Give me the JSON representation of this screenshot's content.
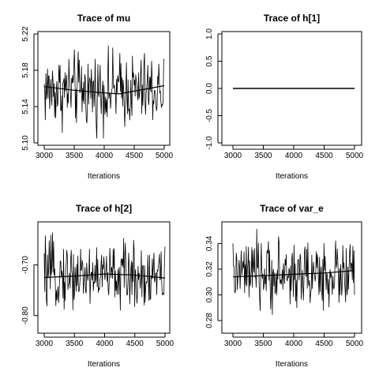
{
  "chart_data": [
    {
      "type": "line",
      "title": "Trace of mu",
      "xlabel": "Iterations",
      "ylabel": "",
      "xlim": [
        3000,
        5000
      ],
      "ylim": [
        5.1,
        5.22
      ],
      "x_ticks": [
        "3000",
        "3500",
        "4000",
        "4500",
        "5000"
      ],
      "y_ticks": [
        "5.10",
        "5.14",
        "5.18",
        "5.22"
      ],
      "series": [
        {
          "role": "trace",
          "x_range": [
            3000,
            5000
          ],
          "approx_mean": 5.158,
          "approx_min": 5.105,
          "approx_max": 5.225
        },
        {
          "role": "smooth",
          "x": [
            3000,
            3500,
            4000,
            4250,
            4500,
            5000
          ],
          "y": [
            5.162,
            5.158,
            5.155,
            5.154,
            5.157,
            5.163
          ]
        }
      ]
    },
    {
      "type": "line",
      "title": "Trace of h[1]",
      "xlabel": "Iterations",
      "ylabel": "",
      "xlim": [
        3000,
        5000
      ],
      "ylim": [
        -1.0,
        1.0
      ],
      "x_ticks": [
        "3000",
        "3500",
        "4000",
        "4500",
        "5000"
      ],
      "y_ticks": [
        "-1.0",
        "-0.5",
        "0.0",
        "0.5",
        "1.0"
      ],
      "series": [
        {
          "role": "trace",
          "x": [
            3000,
            5000
          ],
          "y": [
            0.0,
            0.0
          ]
        }
      ]
    },
    {
      "type": "line",
      "title": "Trace of h[2]",
      "xlabel": "Iterations",
      "ylabel": "",
      "xlim": [
        3000,
        5000
      ],
      "ylim": [
        -0.83,
        -0.62
      ],
      "x_ticks": [
        "3000",
        "3500",
        "4000",
        "4500",
        "5000"
      ],
      "y_ticks": [
        "-0.80",
        "-0.70"
      ],
      "series": [
        {
          "role": "trace",
          "x_range": [
            3000,
            5000
          ],
          "approx_mean": -0.72,
          "approx_min": -0.82,
          "approx_max": -0.63
        },
        {
          "role": "smooth",
          "x": [
            3000,
            3500,
            4000,
            4500,
            5000
          ],
          "y": [
            -0.725,
            -0.722,
            -0.718,
            -0.72,
            -0.726
          ]
        }
      ]
    },
    {
      "type": "line",
      "title": "Trace of var_e",
      "xlabel": "Iterations",
      "ylabel": "",
      "xlim": [
        3000,
        5000
      ],
      "ylim": [
        0.272,
        0.355
      ],
      "x_ticks": [
        "3000",
        "3500",
        "4000",
        "4500",
        "5000"
      ],
      "y_ticks": [
        "0.28",
        "0.30",
        "0.32",
        "0.34"
      ],
      "series": [
        {
          "role": "trace",
          "x_range": [
            3000,
            5000
          ],
          "approx_mean": 0.316,
          "approx_min": 0.275,
          "approx_max": 0.353
        },
        {
          "role": "smooth",
          "x": [
            3000,
            3500,
            4000,
            4500,
            5000
          ],
          "y": [
            0.314,
            0.315,
            0.316,
            0.317,
            0.319
          ]
        }
      ]
    }
  ]
}
